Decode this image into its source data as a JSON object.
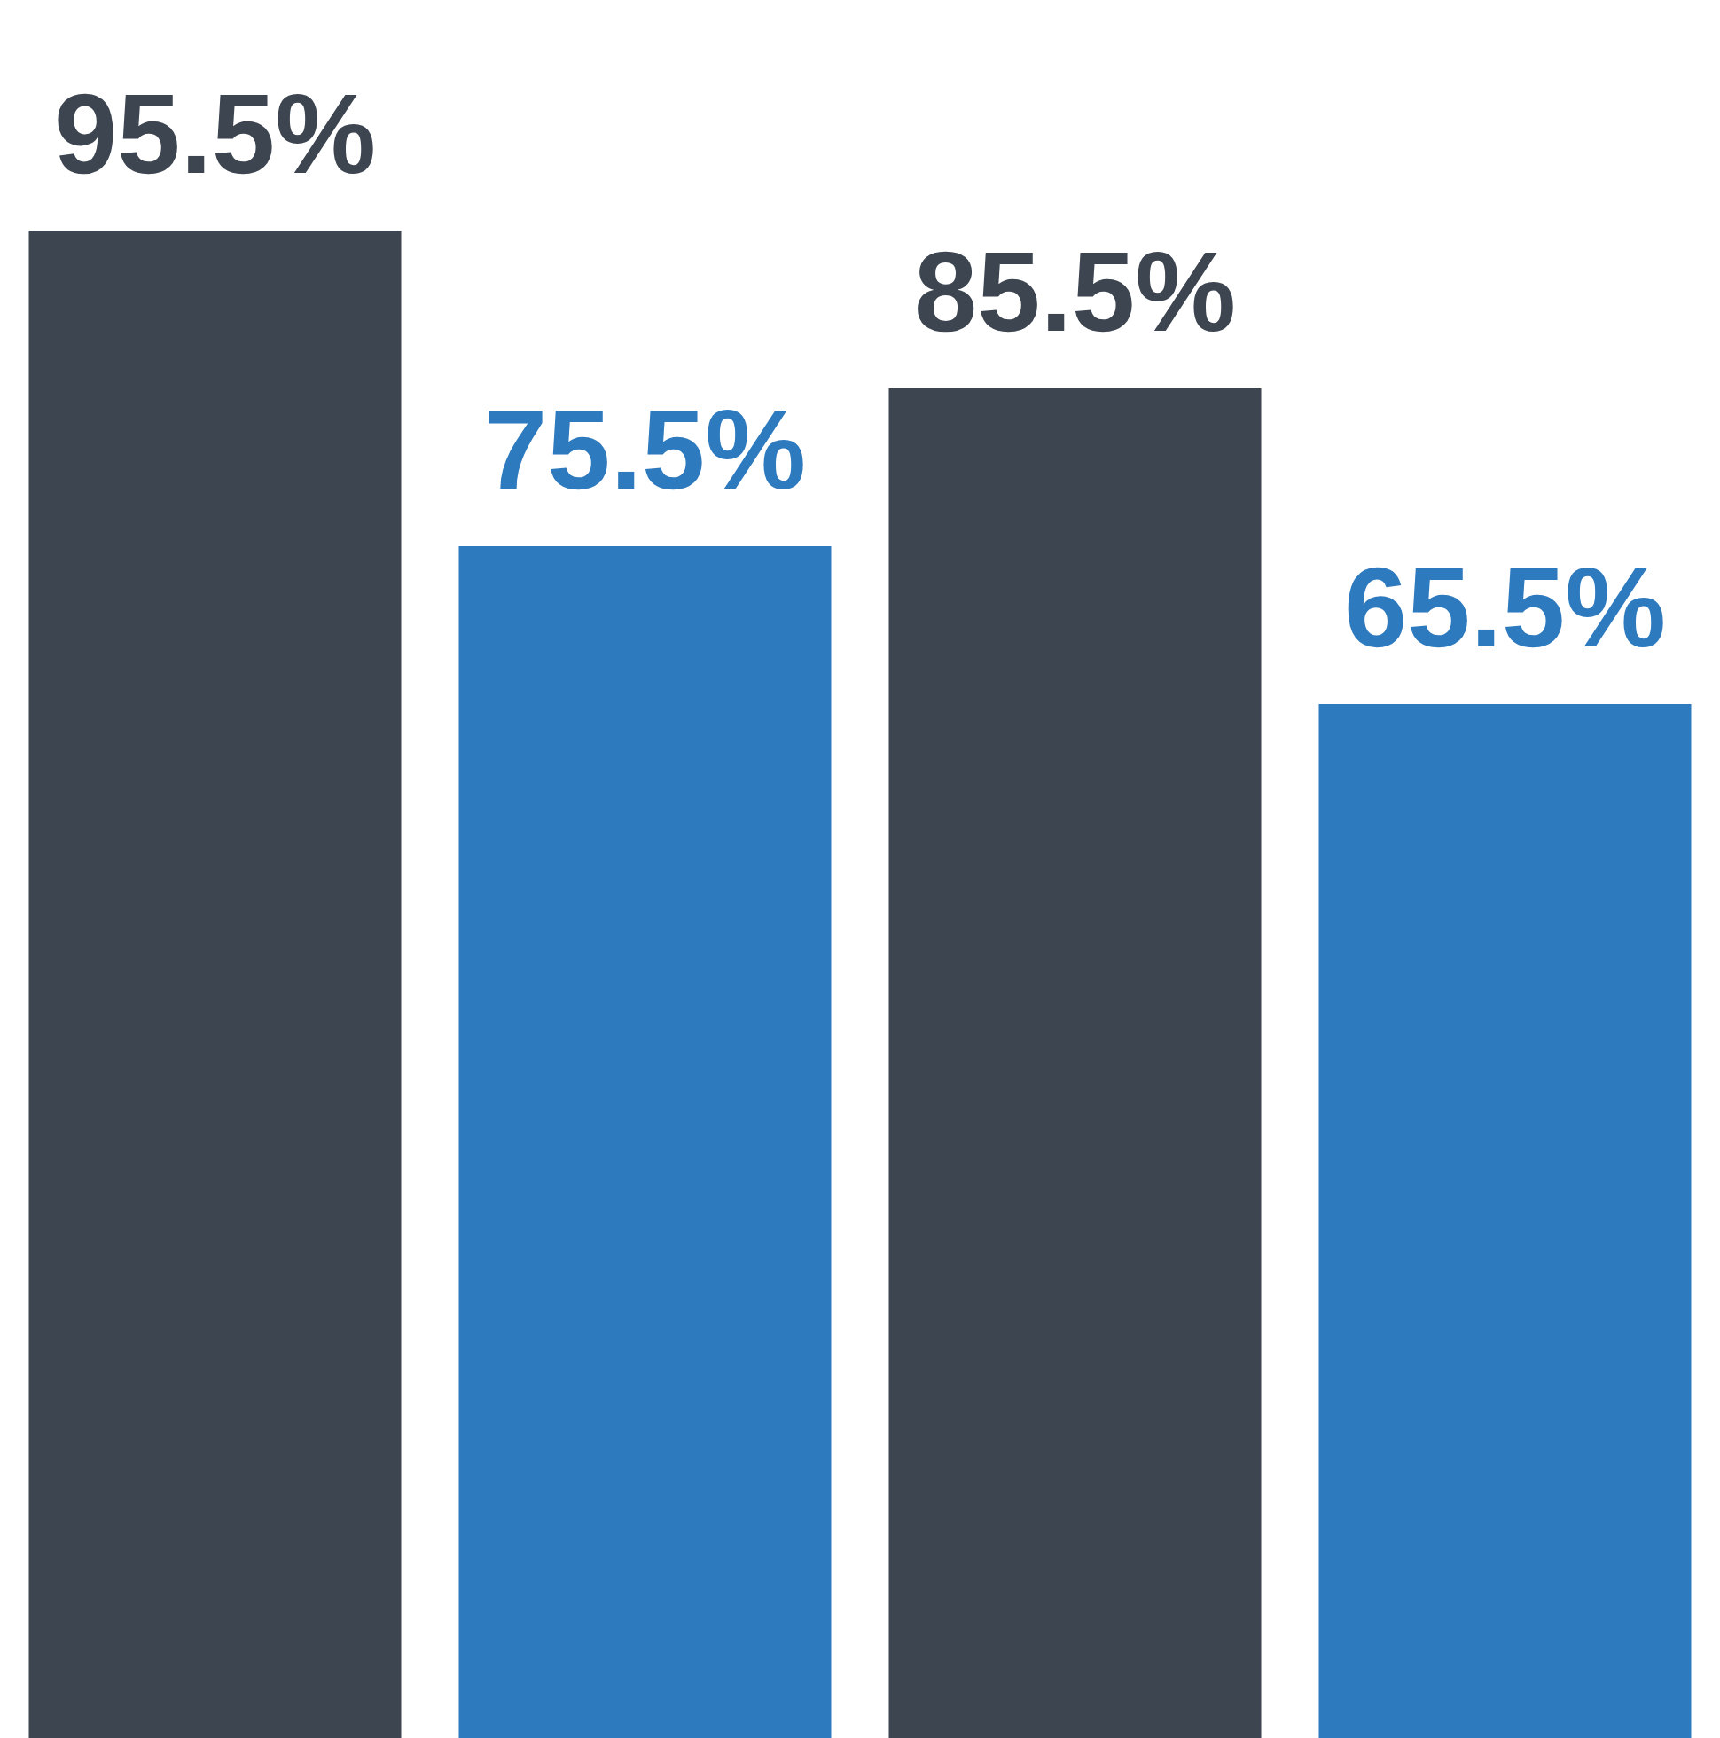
{
  "chart_data": {
    "type": "bar",
    "categories": [
      null,
      null,
      null,
      null
    ],
    "values": [
      95.5,
      75.5,
      85.5,
      65.5
    ],
    "colors": [
      "#3d4550",
      "#2e7abf",
      "#3d4550",
      "#2e7abf"
    ],
    "value_labels": [
      "95.5%",
      "75.5%",
      "85.5%",
      "65.5%"
    ]
  }
}
